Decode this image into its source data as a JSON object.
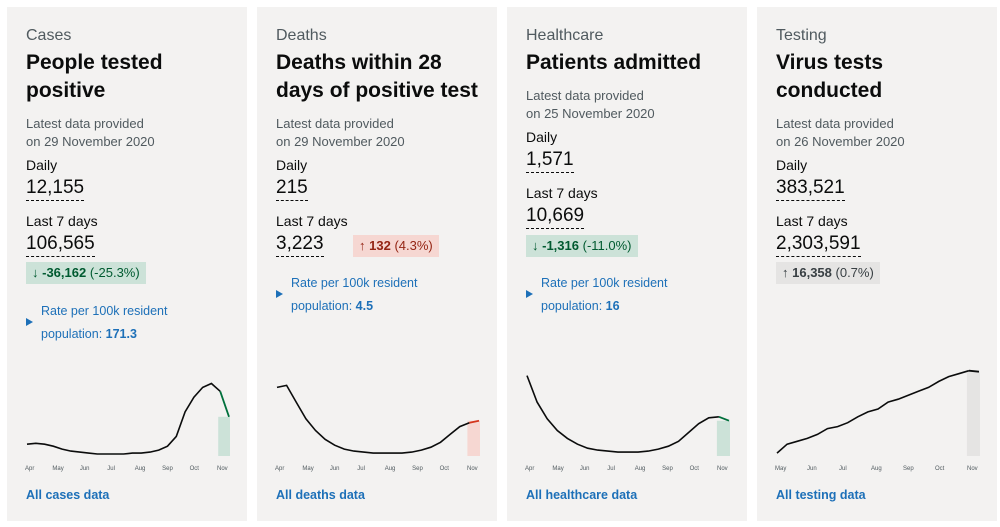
{
  "cards": [
    {
      "category": "Cases",
      "title": "People tested positive",
      "latest_prefix": "Latest data provided",
      "latest_date": "on 29 November 2020",
      "daily_label": "Daily",
      "daily_value": "12,155",
      "week_label": "Last 7 days",
      "week_value": "106,565",
      "change_arrow": "↓",
      "change_value": "-36,162",
      "change_pct": "(-25.3%)",
      "change_dir": "down",
      "rate_prefix": "Rate per 100k resident population:",
      "rate_value": "171.3",
      "link": "All cases data",
      "months": [
        "Apr",
        "May",
        "Jun",
        "Jul",
        "Aug",
        "Sep",
        "Oct",
        "Nov"
      ]
    },
    {
      "category": "Deaths",
      "title": "Deaths within 28 days of positive test",
      "latest_prefix": "Latest data provided",
      "latest_date": "on 29 November 2020",
      "daily_label": "Daily",
      "daily_value": "215",
      "week_label": "Last 7 days",
      "week_value": "3,223",
      "change_arrow": "↑",
      "change_value": "132",
      "change_pct": "(4.3%)",
      "change_dir": "up",
      "rate_prefix": "Rate per 100k resident population:",
      "rate_value": "4.5",
      "link": "All deaths data",
      "months": [
        "Apr",
        "May",
        "Jun",
        "Jul",
        "Aug",
        "Sep",
        "Oct",
        "Nov"
      ]
    },
    {
      "category": "Healthcare",
      "title": "Patients admitted",
      "latest_prefix": "Latest data provided",
      "latest_date": "on 25 November 2020",
      "daily_label": "Daily",
      "daily_value": "1,571",
      "week_label": "Last 7 days",
      "week_value": "10,669",
      "change_arrow": "↓",
      "change_value": "-1,316",
      "change_pct": "(-11.0%)",
      "change_dir": "down",
      "rate_prefix": "Rate per 100k resident population:",
      "rate_value": "16",
      "link": "All healthcare data",
      "months": [
        "Apr",
        "May",
        "Jun",
        "Jul",
        "Aug",
        "Sep",
        "Oct",
        "Nov"
      ]
    },
    {
      "category": "Testing",
      "title": "Virus tests conducted",
      "latest_prefix": "Latest data provided",
      "latest_date": "on 26 November 2020",
      "daily_label": "Daily",
      "daily_value": "383,521",
      "week_label": "Last 7 days",
      "week_value": "2,303,591",
      "change_arrow": "↑",
      "change_value": "16,358",
      "change_pct": "(0.7%)",
      "change_dir": "neutral",
      "rate_prefix": "",
      "rate_value": "",
      "link": "All testing data",
      "months": [
        "May",
        "Jun",
        "Jul",
        "Aug",
        "Sep",
        "Oct",
        "Nov"
      ]
    }
  ],
  "colors": {
    "link": "#1d70b8",
    "text": "#0b0c0c",
    "secondary_text": "#505a5f",
    "card_bg": "#f3f2f1",
    "down_bg": "#cce2d8",
    "down_fg": "#005a30",
    "up_bg": "#f6d7d2",
    "up_fg": "#942514",
    "neutral_bg": "#e5e4e3",
    "neutral_fg": "#383f43"
  },
  "chart_data": [
    {
      "type": "line",
      "series": [
        {
          "values": [
            0.12,
            0.13,
            0.12,
            0.1,
            0.07,
            0.05,
            0.04,
            0.03,
            0.02,
            0.02,
            0.02,
            0.02,
            0.03,
            0.03,
            0.04,
            0.06,
            0.1,
            0.2,
            0.45,
            0.6,
            0.7,
            0.74,
            0.66,
            0.4
          ]
        }
      ],
      "highlight": "down"
    },
    {
      "type": "line",
      "series": [
        {
          "values": [
            0.7,
            0.72,
            0.55,
            0.38,
            0.26,
            0.17,
            0.11,
            0.07,
            0.05,
            0.04,
            0.03,
            0.03,
            0.03,
            0.03,
            0.04,
            0.06,
            0.09,
            0.14,
            0.22,
            0.3,
            0.34,
            0.36
          ]
        }
      ],
      "highlight": "up"
    },
    {
      "type": "line",
      "series": [
        {
          "values": [
            0.82,
            0.55,
            0.38,
            0.26,
            0.18,
            0.12,
            0.08,
            0.06,
            0.05,
            0.04,
            0.04,
            0.04,
            0.05,
            0.07,
            0.1,
            0.15,
            0.24,
            0.33,
            0.39,
            0.4,
            0.36
          ]
        }
      ],
      "highlight": "down"
    },
    {
      "type": "line",
      "series": [
        {
          "values": [
            0.03,
            0.12,
            0.15,
            0.18,
            0.22,
            0.28,
            0.3,
            0.34,
            0.4,
            0.45,
            0.48,
            0.55,
            0.58,
            0.62,
            0.66,
            0.7,
            0.76,
            0.81,
            0.84,
            0.87,
            0.86
          ]
        }
      ],
      "highlight": "neutral"
    }
  ]
}
